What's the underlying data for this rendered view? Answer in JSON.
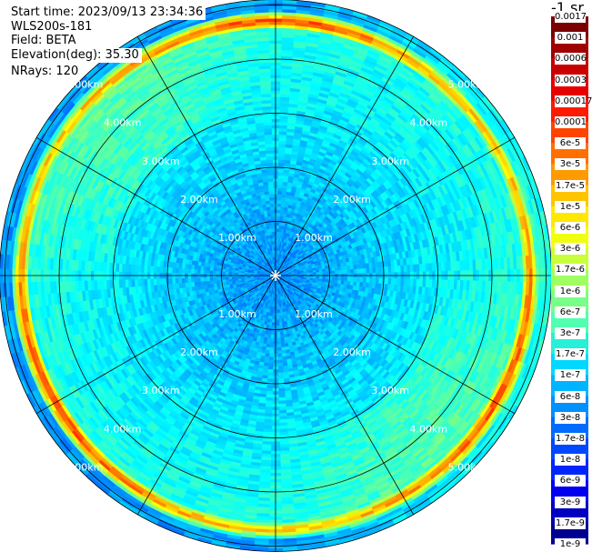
{
  "info": {
    "start_time": "Start time: 2023/09/13 23:34:36",
    "instrument": "WLS200s-181",
    "field": "Field: BETA",
    "elevation": "Elevation(deg): 35.30",
    "nrays": "NRays: 120"
  },
  "chart_data": {
    "type": "heatmap",
    "projection": "polar (PPI scan)",
    "field": "BETA",
    "range_rings": [
      "1.00km",
      "2.00km",
      "3.00km",
      "4.00km",
      "5.00km"
    ],
    "range_rings_km": [
      1,
      2,
      3,
      4,
      5
    ],
    "max_range_km": 5.1,
    "azimuth_spokes_deg": [
      0,
      30,
      60,
      90,
      120,
      150,
      180,
      210,
      240,
      270,
      300,
      330
    ],
    "nrays": 120,
    "colorbar": {
      "unit_label": "-1 sr",
      "ticks": [
        "0.0017",
        "0.001",
        "0.0006",
        "0.0003",
        "0.00017",
        "0.0001",
        "6e-5",
        "3e-5",
        "1.7e-5",
        "1e-5",
        "6e-6",
        "3e-6",
        "1.7e-6",
        "1e-6",
        "6e-7",
        "3e-7",
        "1.7e-7",
        "1e-7",
        "6e-8",
        "3e-8",
        "1.7e-8",
        "1e-8",
        "6e-9",
        "3e-9",
        "1.7e-9",
        "1e-9"
      ],
      "scale": "log",
      "colors": [
        "#7a0000",
        "#a00000",
        "#c80000",
        "#e60000",
        "#ff1a00",
        "#ff4400",
        "#ff7000",
        "#ff9a00",
        "#ffc400",
        "#ffe800",
        "#f0ff10",
        "#c8ff3a",
        "#a0ff60",
        "#78ff88",
        "#50ffb0",
        "#28f0d8",
        "#00d8ff",
        "#00b4ff",
        "#0090ff",
        "#006cff",
        "#0048ff",
        "#0024ff",
        "#0000f0",
        "#0000c0",
        "#000090",
        "#000060"
      ]
    },
    "field_structure": [
      {
        "range_km": [
          0.0,
          1.4
        ],
        "approx_value": "3e-8"
      },
      {
        "range_km": [
          1.4,
          3.0
        ],
        "approx_value": "1e-7"
      },
      {
        "range_km": [
          3.0,
          4.6
        ],
        "approx_value": "3e-7"
      },
      {
        "range_km": [
          4.6,
          4.85
        ],
        "approx_value": "1e-5"
      },
      {
        "range_km": [
          4.85,
          5.1
        ],
        "approx_value": "6e-8"
      }
    ]
  }
}
